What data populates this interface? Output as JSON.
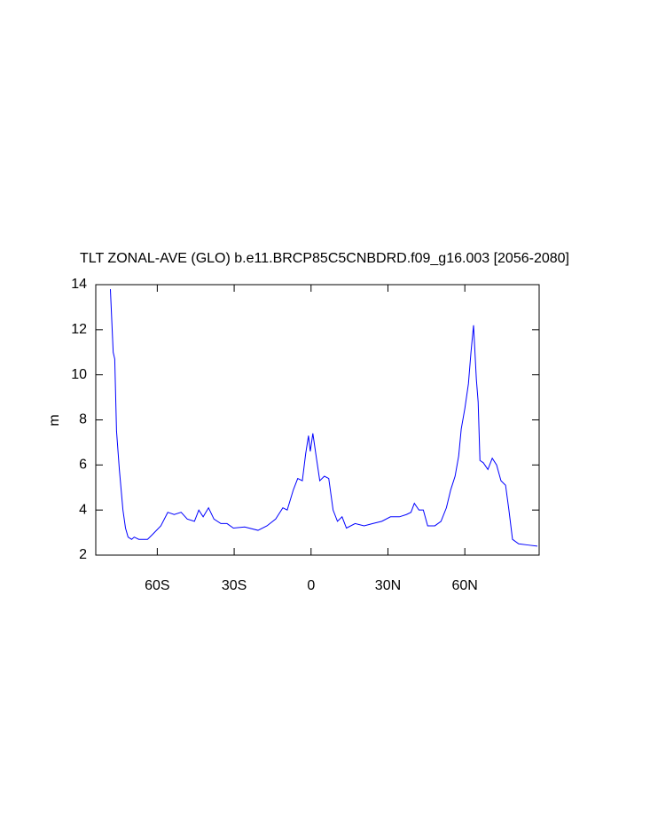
{
  "chart_data": {
    "type": "line",
    "title": "TLT ZONAL-AVE (GLO) b.e11.BRCP85C5CNBDRD.f09_g16.003 [2056-2080]",
    "y_label": "m",
    "x": [
      -78.3,
      -77.2,
      -76.6,
      -75.9,
      -74.8,
      -73.4,
      -72.4,
      -71.4,
      -70,
      -69,
      -67.2,
      -63.8,
      -62,
      -58.6,
      -55.9,
      -53.4,
      -50.7,
      -48.3,
      -45.5,
      -43.8,
      -42.1,
      -40,
      -37.9,
      -35.2,
      -32.8,
      -30.3,
      -25.9,
      -20.7,
      -17.2,
      -13.8,
      -11,
      -9.3,
      -6.9,
      -5.2,
      -3.4,
      -2.1,
      -1,
      -0.3,
      0.7,
      2.1,
      3.4,
      5.2,
      6.9,
      8.6,
      10.3,
      12.1,
      13.8,
      17.2,
      20.7,
      24.1,
      27.6,
      31,
      34.5,
      37.2,
      39,
      40.3,
      42.1,
      43.8,
      45.5,
      48.3,
      50.7,
      52.8,
      54.5,
      56.2,
      57.6,
      58.6,
      60,
      61.4,
      62.4,
      63.4,
      64.5,
      65.2,
      65.9,
      67.2,
      69,
      70.7,
      72.4,
      74.1,
      75.9,
      77.2,
      78.6,
      81,
      84.5,
      88.3
    ],
    "series": [
      {
        "name": "TLT",
        "color": "#0000ff",
        "values": [
          13.8,
          11,
          10.7,
          7.5,
          5.8,
          4.0,
          3.2,
          2.8,
          2.7,
          2.8,
          2.7,
          2.7,
          2.9,
          3.3,
          3.9,
          3.8,
          3.9,
          3.6,
          3.5,
          4.0,
          3.7,
          4.1,
          3.6,
          3.4,
          3.4,
          3.2,
          3.25,
          3.1,
          3.3,
          3.6,
          4.1,
          4.0,
          4.9,
          5.4,
          5.3,
          6.5,
          7.3,
          6.6,
          7.4,
          6.3,
          5.3,
          5.5,
          5.4,
          4.0,
          3.5,
          3.7,
          3.2,
          3.4,
          3.3,
          3.4,
          3.5,
          3.7,
          3.7,
          3.8,
          3.9,
          4.3,
          4.0,
          4.0,
          3.3,
          3.3,
          3.5,
          4.1,
          4.9,
          5.5,
          6.4,
          7.6,
          8.5,
          9.6,
          11.0,
          12.2,
          9.8,
          8.8,
          6.2,
          6.1,
          5.8,
          6.3,
          6.0,
          5.3,
          5.1,
          4.0,
          2.7,
          2.5,
          2.45,
          2.4
        ]
      }
    ],
    "xlim": [
      -84,
      89
    ],
    "xticks": [
      {
        "value": -60,
        "label": "60S"
      },
      {
        "value": -30,
        "label": "30S"
      },
      0,
      {
        "value": 30,
        "label": "30N"
      },
      {
        "value": 60,
        "label": "60N"
      }
    ],
    "ylim": [
      2,
      14
    ],
    "yticks": [
      2,
      4,
      6,
      8,
      10,
      12,
      14
    ]
  }
}
